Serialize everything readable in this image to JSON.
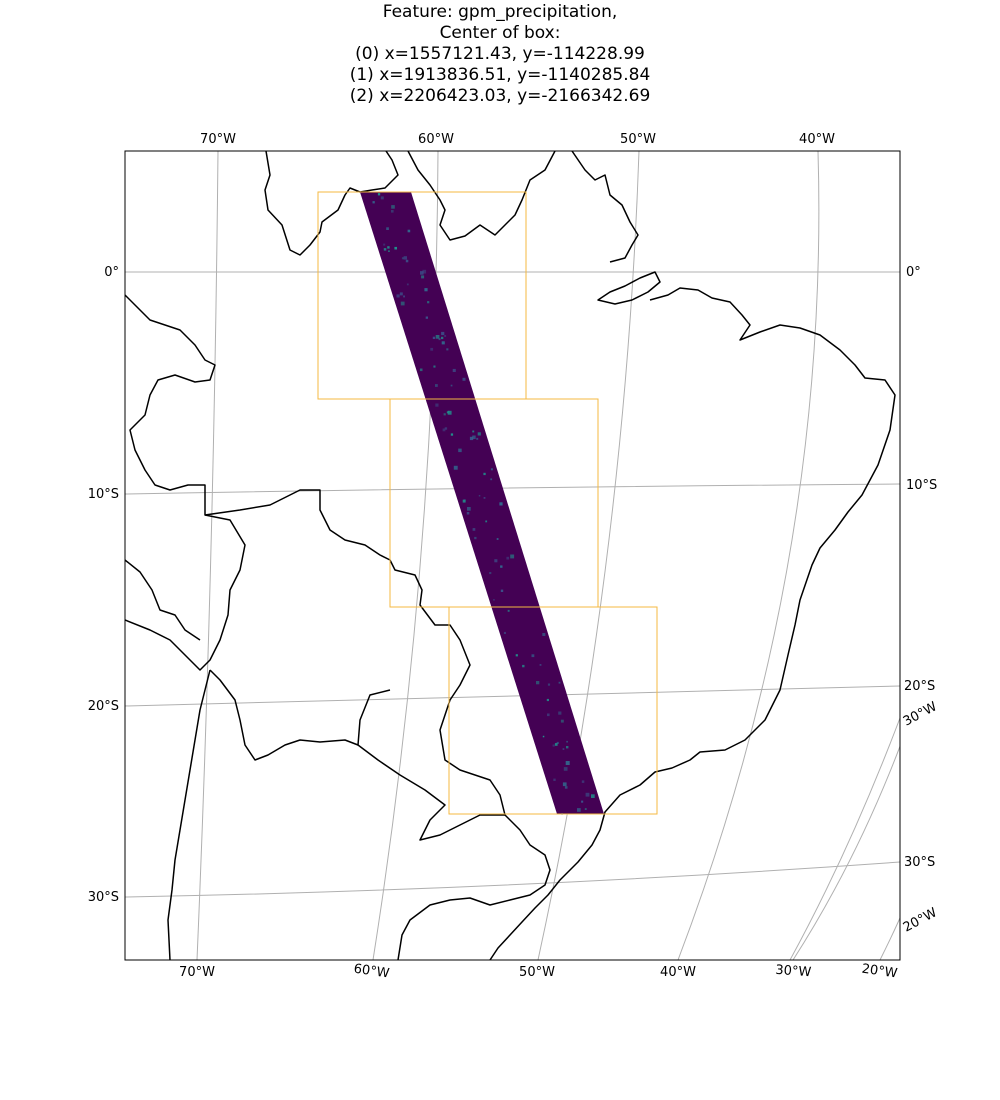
{
  "title": {
    "feature_line": "Feature: gpm_precipitation,",
    "center_line": "Center of box:",
    "boxes": [
      "(0) x=1557121.43, y=-114228.99",
      "(1) x=1913836.51, y=-1140285.84",
      "(2) x=2206423.03, y=-2166342.69"
    ]
  },
  "map": {
    "feature": "gpm_precipitation",
    "box_color": "#f5b942",
    "swath_color": "#440154",
    "swath_speckle_colors": [
      "#3b528b",
      "#31688e",
      "#21918c"
    ],
    "coastline_color": "#000000",
    "graticule_color": "#b0b0b0",
    "top_lon_labels": [
      "70°W",
      "60°W",
      "50°W",
      "40°W"
    ],
    "bottom_lon_labels": [
      "70°W",
      "60°W",
      "50°W",
      "40°W",
      "30°W",
      "20°W"
    ],
    "left_lat_labels": [
      "0°",
      "10°S",
      "20°S",
      "30°S"
    ],
    "right_lat_labels": [
      "0°",
      "10°S",
      "20°S",
      "30°S"
    ],
    "right_lon_labels": [
      "30°W",
      "20°W"
    ]
  }
}
